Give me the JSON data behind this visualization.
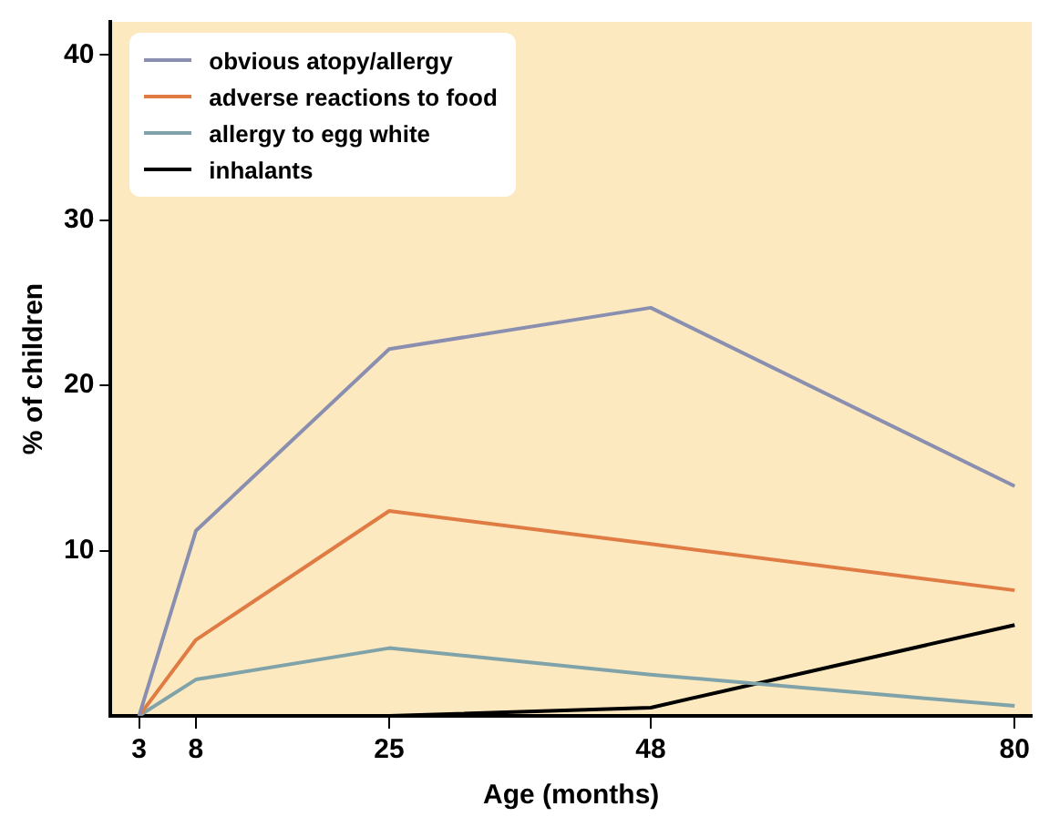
{
  "chart_data": {
    "type": "line",
    "xlabel": "Age (months)",
    "ylabel": "% of children",
    "x": [
      3,
      8,
      25,
      48,
      80
    ],
    "series": [
      {
        "name": "obvious atopy/allergy",
        "color": "#8a8fb0",
        "values": [
          0,
          11.2,
          22.2,
          24.7,
          13.9
        ]
      },
      {
        "name": "adverse reactions to food",
        "color": "#e07b44",
        "values": [
          0,
          4.6,
          12.4,
          10.4,
          7.6
        ]
      },
      {
        "name": "allergy to egg white",
        "color": "#7fa3a8",
        "values": [
          0,
          2.2,
          4.1,
          2.5,
          0.6
        ]
      },
      {
        "name": "inhalants",
        "color": "#000000",
        "values": [
          0,
          0,
          0,
          0.5,
          5.5
        ]
      }
    ],
    "xlim": [
      0.5,
      81.5
    ],
    "xticks": [
      3,
      8,
      25,
      48,
      80
    ],
    "ylim": [
      0,
      42
    ],
    "yticks": [
      10,
      20,
      30,
      40
    ],
    "grid": false,
    "legend": "top left",
    "marker": "none",
    "line_style": "solid"
  }
}
